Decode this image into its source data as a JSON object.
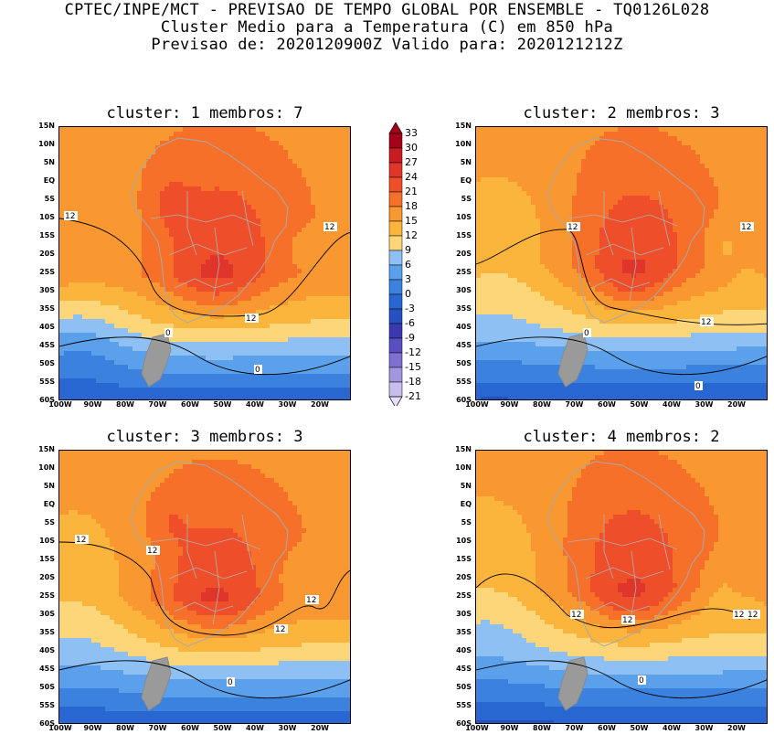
{
  "header": {
    "line1": "CPTEC/INPE/MCT - PREVISAO DE TEMPO GLOBAL POR ENSEMBLE - TQ0126L028",
    "line2": "Cluster Medio para a Temperatura (C) em 850 hPa",
    "line3": "Previsao de: 2020120900Z   Valido para: 2020121212Z"
  },
  "panels": [
    {
      "title": "cluster: 1  membros: 7",
      "contour_labels": [
        "12",
        "12",
        "12",
        "0",
        "0"
      ]
    },
    {
      "title": "cluster: 2  membros: 3",
      "contour_labels": [
        "12",
        "12",
        "12",
        "0",
        "0"
      ]
    },
    {
      "title": "cluster: 3  membros: 3",
      "contour_labels": [
        "12",
        "12",
        "12",
        "12",
        "0"
      ]
    },
    {
      "title": "cluster: 4  membros: 2",
      "contour_labels": [
        "12",
        "12",
        "12",
        "12",
        "0"
      ]
    }
  ],
  "lat_labels": [
    "15N",
    "10N",
    "5N",
    "EQ",
    "5S",
    "10S",
    "15S",
    "20S",
    "25S",
    "30S",
    "35S",
    "40S",
    "45S",
    "50S",
    "55S",
    "60S"
  ],
  "lon_labels": [
    "100W",
    "90W",
    "80W",
    "70W",
    "60W",
    "50W",
    "40W",
    "30W",
    "20W"
  ],
  "colorbar": {
    "labels": [
      "33",
      "30",
      "27",
      "24",
      "21",
      "18",
      "15",
      "12",
      "9",
      "6",
      "3",
      "0",
      "-3",
      "-6",
      "-9",
      "-12",
      "-15",
      "-18",
      "-21"
    ],
    "colors": [
      "#a5001a",
      "#c81b22",
      "#e0352a",
      "#ee4f2a",
      "#f7702a",
      "#f99730",
      "#fbb53c",
      "#fdd67a",
      "#8ec0f4",
      "#5ba0ea",
      "#3a82de",
      "#2866d2",
      "#2450c0",
      "#3a3ab0",
      "#5a4fc2",
      "#7e6fd2",
      "#a495df",
      "#c8bdec"
    ]
  }
}
